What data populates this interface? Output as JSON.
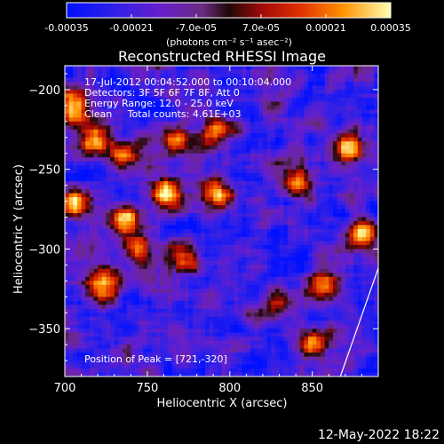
{
  "colorbar": {
    "ticks": [
      "-0.00035",
      "-0.00021",
      "-7.0e-05",
      "7.0e-05",
      "0.00021",
      "0.00035"
    ],
    "range": [
      -0.00035,
      0.00035
    ],
    "unit_label": "(photons cm⁻² s⁻¹ asec⁻²)"
  },
  "plot": {
    "title": "Reconstructed RHESSI Image",
    "info_lines": [
      "17-Jul-2012 00:04:52.000 to 00:10:04.000",
      "Detectors: 3F 5F 6F 7F 8F, Att 0",
      "Energy Range: 12.0 - 25.0 keV",
      "Clean     Total counts: 4.61E+03"
    ],
    "peak_text": "Position of Peak = [721,-320]"
  },
  "chart_data": {
    "type": "heatmap",
    "title": "Reconstructed RHESSI Image",
    "xlabel": "Heliocentric X (arcsec)",
    "ylabel": "Heliocentric Y (arcsec)",
    "xlim": [
      700,
      890
    ],
    "ylim": [
      -380,
      -185
    ],
    "xticks": [
      700,
      750,
      800,
      850
    ],
    "yticks": [
      -200,
      -250,
      -300,
      -350
    ],
    "colorscale": [
      "#0010ff",
      "#5a1fd0",
      "#7a2a80",
      "#3a1010",
      "#b01010",
      "#ff5000",
      "#ffb000",
      "#ffff80"
    ],
    "peak_position": [
      721,
      -320
    ],
    "bright_regions": [
      {
        "x": 705,
        "y": -210,
        "level": 0.8
      },
      {
        "x": 715,
        "y": -230,
        "level": 0.9
      },
      {
        "x": 735,
        "y": -240,
        "level": 0.8
      },
      {
        "x": 765,
        "y": -230,
        "level": 0.7
      },
      {
        "x": 790,
        "y": -225,
        "level": 0.8
      },
      {
        "x": 705,
        "y": -270,
        "level": 1.0
      },
      {
        "x": 735,
        "y": -280,
        "level": 0.95
      },
      {
        "x": 760,
        "y": -265,
        "level": 1.0
      },
      {
        "x": 790,
        "y": -265,
        "level": 0.95
      },
      {
        "x": 721,
        "y": -320,
        "level": 1.0
      },
      {
        "x": 745,
        "y": -300,
        "level": 0.8
      },
      {
        "x": 770,
        "y": -305,
        "level": 0.7
      },
      {
        "x": 840,
        "y": -255,
        "level": 0.75
      },
      {
        "x": 870,
        "y": -235,
        "level": 1.0
      },
      {
        "x": 855,
        "y": -320,
        "level": 0.9
      },
      {
        "x": 880,
        "y": -290,
        "level": 0.8
      },
      {
        "x": 850,
        "y": -360,
        "level": 0.85
      },
      {
        "x": 825,
        "y": -335,
        "level": 0.6
      }
    ],
    "limb_line": {
      "x": [
        867,
        890
      ],
      "y": [
        -380,
        -312
      ]
    }
  },
  "footer": {
    "timestamp": "12-May-2022 18:22"
  }
}
